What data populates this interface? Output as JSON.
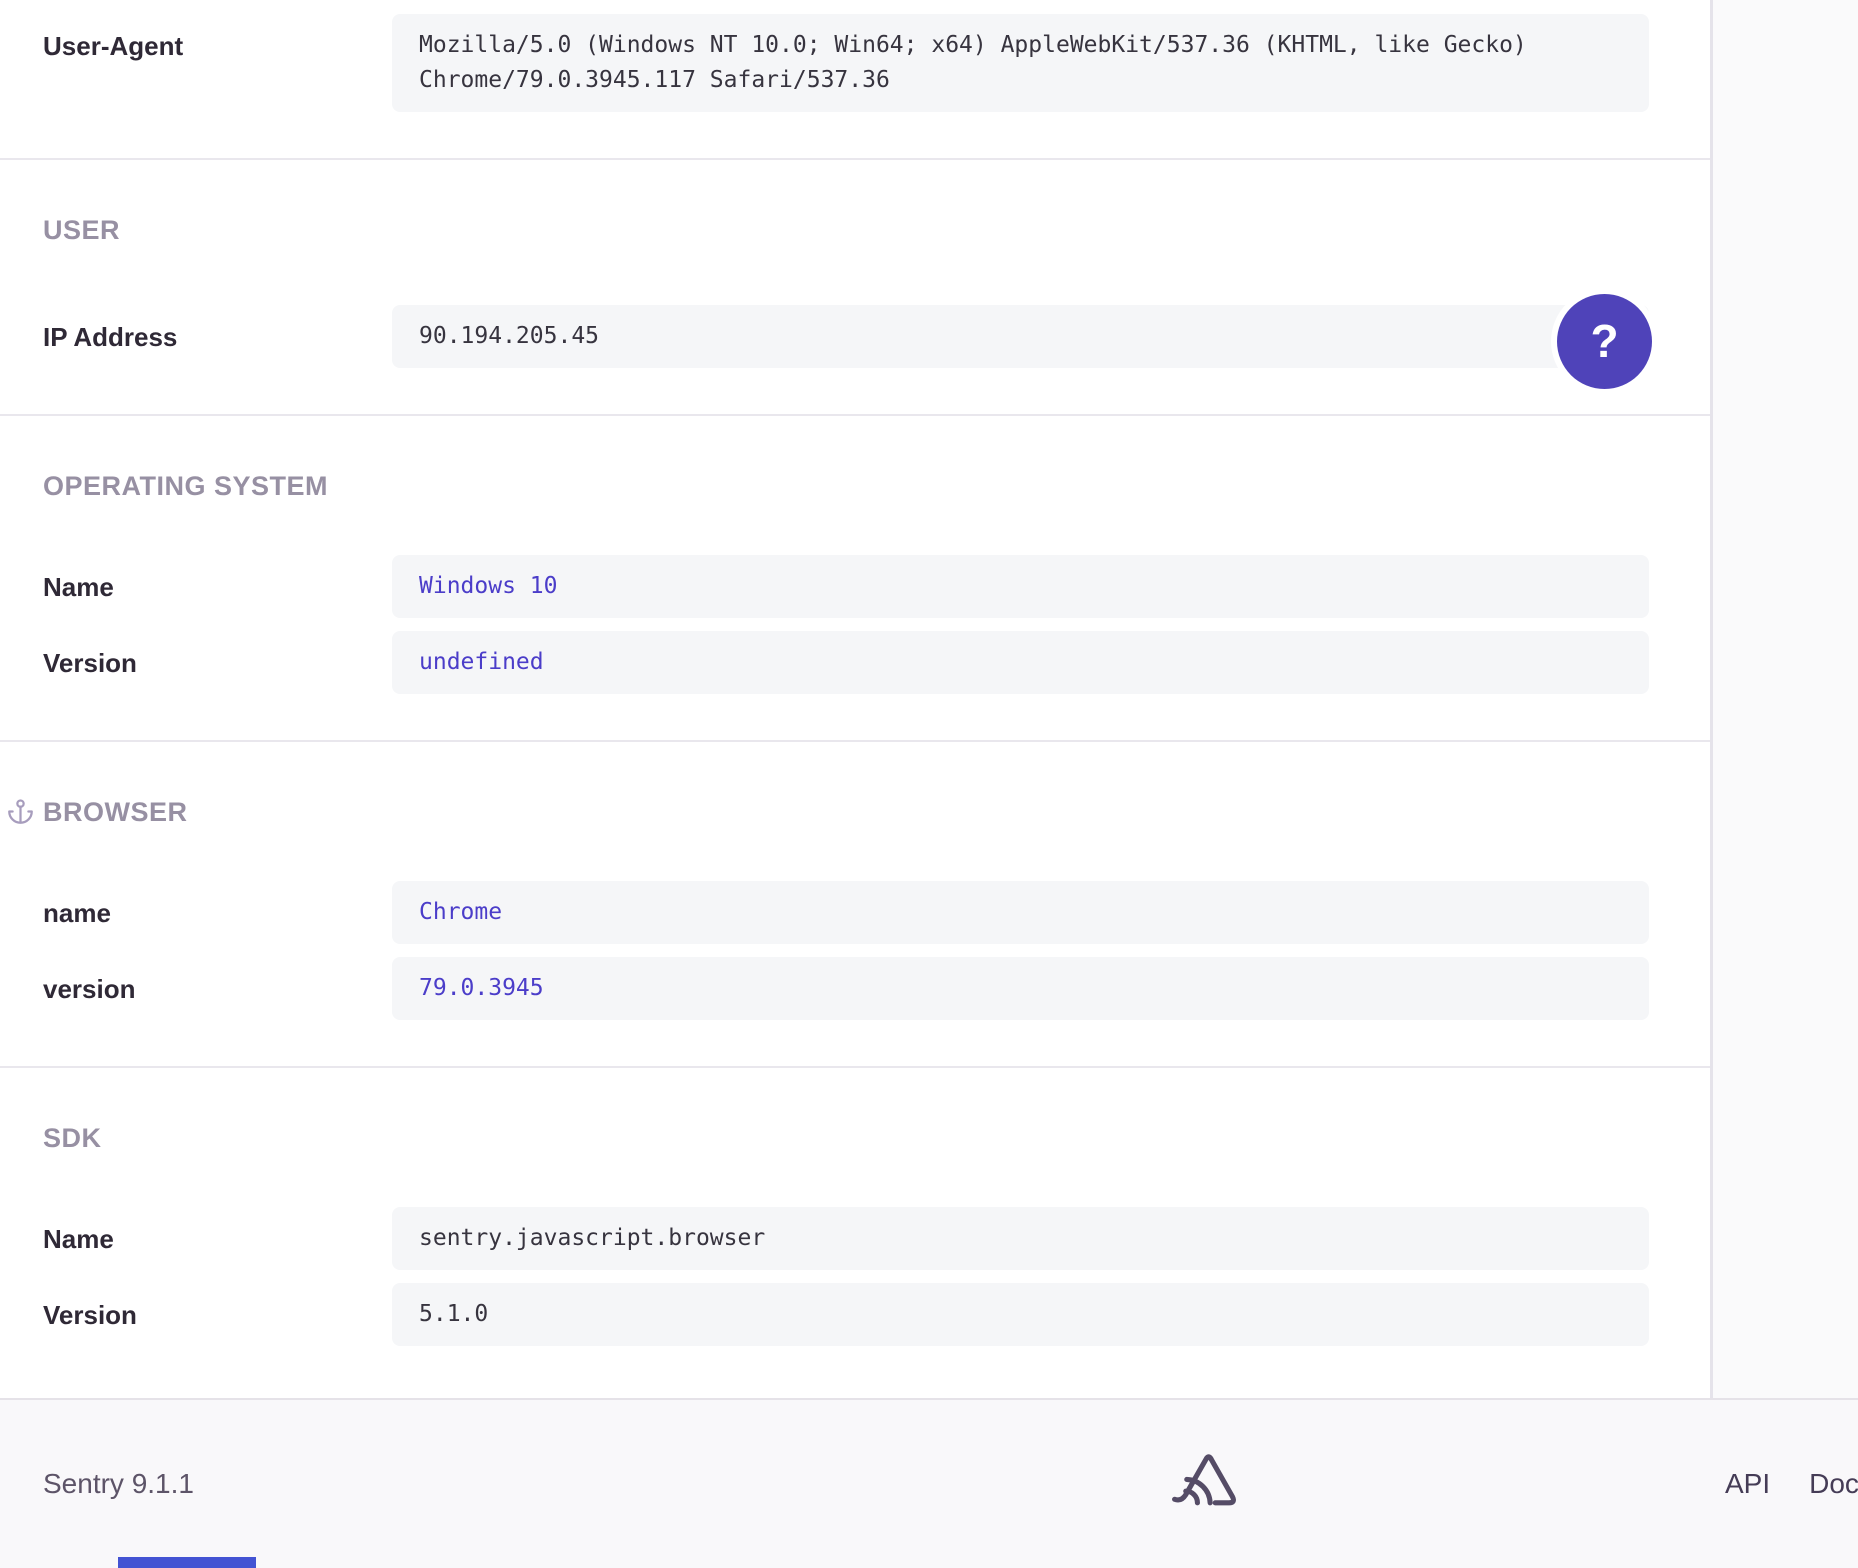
{
  "sections": [
    {
      "id": "request",
      "title": null,
      "anchor": false,
      "rows": [
        {
          "label": "User-Agent",
          "value": "Mozilla/5.0 (Windows NT 10.0; Win64; x64) AppleWebKit/537.36 (KHTML, like Gecko) Chrome/79.0.3945.117 Safari/537.36",
          "style": "dark"
        }
      ]
    },
    {
      "id": "user",
      "title": "USER",
      "anchor": false,
      "rows": [
        {
          "label": "IP Address",
          "value": "90.194.205.45",
          "style": "dark"
        }
      ]
    },
    {
      "id": "operating-system",
      "title": "OPERATING SYSTEM",
      "anchor": false,
      "rows": [
        {
          "label": "Name",
          "value": "Windows 10",
          "style": "indigo"
        },
        {
          "label": "Version",
          "value": "undefined",
          "style": "indigo"
        }
      ]
    },
    {
      "id": "browser",
      "title": "BROWSER",
      "anchor": true,
      "rows": [
        {
          "label": "name",
          "value": "Chrome",
          "style": "indigo"
        },
        {
          "label": "version",
          "value": "79.0.3945",
          "style": "indigo"
        }
      ]
    },
    {
      "id": "sdk",
      "title": "SDK",
      "anchor": false,
      "rows": [
        {
          "label": "Name",
          "value": "sentry.javascript.browser",
          "style": "dark"
        },
        {
          "label": "Version",
          "value": "5.1.0",
          "style": "dark"
        }
      ]
    }
  ],
  "help_button": {
    "label": "?"
  },
  "footer": {
    "app_version": "Sentry 9.1.1",
    "logo": "sentry-logo",
    "links": [
      {
        "label": "API"
      },
      {
        "label": "Docs"
      }
    ]
  },
  "colors": {
    "accent_indigo": "#4b3dc9",
    "help_button_bg": "#4f43b9",
    "section_header_gray": "#9790a3",
    "label_dark": "#2f2936",
    "mono_dark": "#37343f",
    "value_box_bg": "#f5f6f8",
    "divider": "#e9e7ed",
    "footer_text": "#5d5468",
    "footer_link": "#453c56",
    "logo_color": "#554c66",
    "bottom_bar_blue": "#4353d3"
  }
}
